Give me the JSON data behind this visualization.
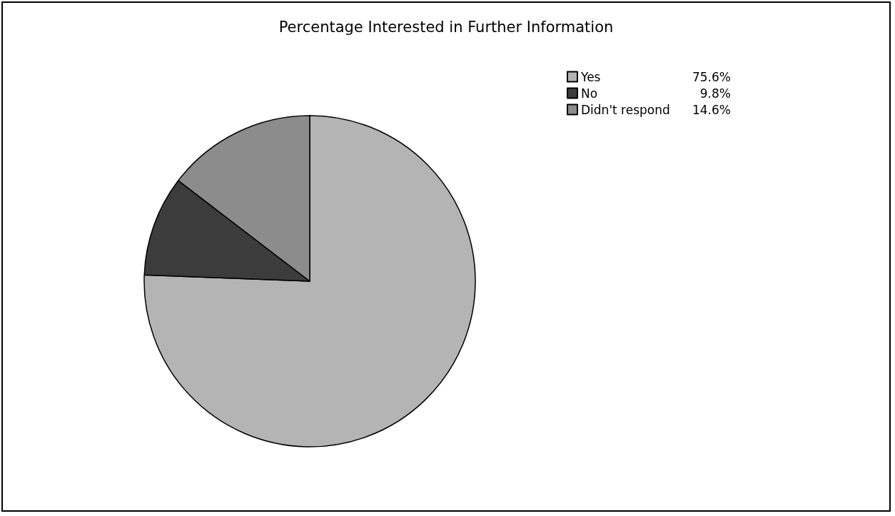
{
  "chart_data": {
    "type": "pie",
    "title": "Percentage Interested in Further Information",
    "categories": [
      "Yes",
      "No",
      "Didn't respond"
    ],
    "values": [
      75.6,
      9.8,
      14.6
    ],
    "value_labels": [
      "75.6%",
      "9.8%",
      "14.6%"
    ],
    "colors": [
      "#b4b4b4",
      "#3c3c3c",
      "#8c8c8c"
    ],
    "legend": "top right"
  }
}
